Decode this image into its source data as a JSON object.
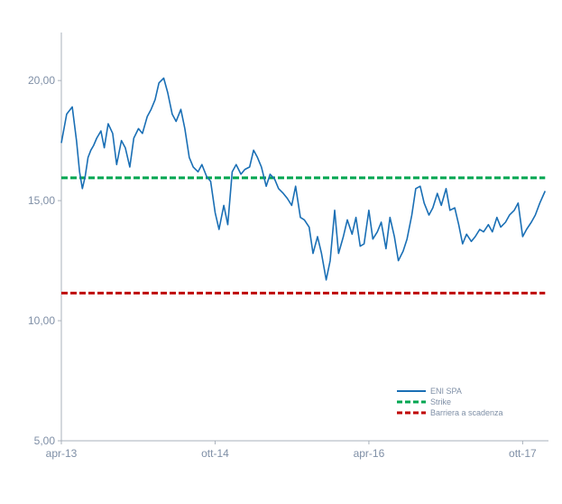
{
  "chart_data": {
    "type": "line",
    "title": "",
    "xlabel": "",
    "ylabel": "",
    "ylim": [
      5,
      22
    ],
    "yticks": [
      5,
      10,
      15,
      20
    ],
    "ytick_labels": [
      "5,00",
      "10,00",
      "15,00",
      "20,00"
    ],
    "xlim": [
      "2013-04-01",
      "2018-01-01"
    ],
    "xticks": [
      "2013-04-01",
      "2014-10-01",
      "2016-04-01",
      "2017-10-01"
    ],
    "xtick_labels": [
      "apr-13",
      "ott-14",
      "apr-16",
      "ott-17"
    ],
    "grid": false,
    "legend_position": "bottom-right",
    "series": [
      {
        "name": "ENI SPA",
        "color": "#1a6fb5",
        "style": "solid",
        "x": [
          "2013-04-01",
          "2013-04-20",
          "2013-05-10",
          "2013-05-25",
          "2013-06-05",
          "2013-06-15",
          "2013-06-25",
          "2013-07-05",
          "2013-07-15",
          "2013-07-25",
          "2013-08-05",
          "2013-08-20",
          "2013-09-01",
          "2013-09-15",
          "2013-10-01",
          "2013-10-15",
          "2013-11-01",
          "2013-11-15",
          "2013-12-01",
          "2013-12-15",
          "2014-01-01",
          "2014-01-15",
          "2014-02-01",
          "2014-02-15",
          "2014-03-01",
          "2014-03-15",
          "2014-04-01",
          "2014-04-15",
          "2014-05-01",
          "2014-05-15",
          "2014-06-01",
          "2014-06-15",
          "2014-07-01",
          "2014-07-15",
          "2014-08-01",
          "2014-08-15",
          "2014-09-01",
          "2014-09-15",
          "2014-10-01",
          "2014-10-15",
          "2014-11-01",
          "2014-11-15",
          "2014-12-01",
          "2014-12-15",
          "2015-01-01",
          "2015-01-15",
          "2015-02-01",
          "2015-02-15",
          "2015-03-01",
          "2015-03-15",
          "2015-04-01",
          "2015-04-15",
          "2015-05-01",
          "2015-05-15",
          "2015-06-01",
          "2015-06-15",
          "2015-07-01",
          "2015-07-15",
          "2015-08-01",
          "2015-08-15",
          "2015-09-01",
          "2015-09-15",
          "2015-10-01",
          "2015-10-15",
          "2015-11-01",
          "2015-11-15",
          "2015-12-01",
          "2015-12-15",
          "2016-01-01",
          "2016-01-15",
          "2016-02-01",
          "2016-02-15",
          "2016-03-01",
          "2016-03-15",
          "2016-04-01",
          "2016-04-15",
          "2016-05-01",
          "2016-05-15",
          "2016-06-01",
          "2016-06-15",
          "2016-07-01",
          "2016-07-15",
          "2016-08-01",
          "2016-08-15",
          "2016-09-01",
          "2016-09-15",
          "2016-10-01",
          "2016-10-15",
          "2016-11-01",
          "2016-11-15",
          "2016-12-01",
          "2016-12-15",
          "2017-01-01",
          "2017-01-15",
          "2017-02-01",
          "2017-02-15",
          "2017-03-01",
          "2017-03-15",
          "2017-04-01",
          "2017-04-15",
          "2017-05-01",
          "2017-05-15",
          "2017-06-01",
          "2017-06-15",
          "2017-07-01",
          "2017-07-15",
          "2017-08-01",
          "2017-08-15",
          "2017-09-01",
          "2017-09-15",
          "2017-10-01",
          "2017-10-15",
          "2017-11-01",
          "2017-11-15",
          "2017-12-01",
          "2017-12-20"
        ],
        "values": [
          17.4,
          18.6,
          18.9,
          17.5,
          16.2,
          15.5,
          16.0,
          16.8,
          17.1,
          17.3,
          17.6,
          17.9,
          17.2,
          18.2,
          17.8,
          16.5,
          17.5,
          17.2,
          16.4,
          17.6,
          18.0,
          17.8,
          18.5,
          18.8,
          19.2,
          19.9,
          20.1,
          19.5,
          18.6,
          18.3,
          18.8,
          18.0,
          16.8,
          16.4,
          16.2,
          16.5,
          16.0,
          15.8,
          14.5,
          13.8,
          14.8,
          14.0,
          16.2,
          16.5,
          16.1,
          16.3,
          16.4,
          17.1,
          16.8,
          16.4,
          15.6,
          16.1,
          15.9,
          15.5,
          15.3,
          15.1,
          14.8,
          15.6,
          14.3,
          14.2,
          13.9,
          12.8,
          13.5,
          12.8,
          11.7,
          12.5,
          14.6,
          12.8,
          13.5,
          14.2,
          13.6,
          14.3,
          13.1,
          13.2,
          14.6,
          13.4,
          13.7,
          14.1,
          13.0,
          14.3,
          13.5,
          12.5,
          12.9,
          13.4,
          14.4,
          15.5,
          15.6,
          14.9,
          14.4,
          14.7,
          15.3,
          14.8,
          15.5,
          14.6,
          14.7,
          14.0,
          13.2,
          13.6,
          13.3,
          13.5,
          13.8,
          13.7,
          14.0,
          13.7,
          14.3,
          13.9,
          14.1,
          14.4,
          14.6,
          14.9,
          13.5,
          13.8,
          14.1,
          14.4,
          14.9,
          15.4
        ]
      },
      {
        "name": "Strike",
        "color": "#00a651",
        "style": "dashed",
        "x": [
          "2013-04-01",
          "2017-12-20"
        ],
        "values": [
          15.95,
          15.95
        ]
      },
      {
        "name": "Barriera a scadenza",
        "color": "#c00000",
        "style": "dashed",
        "x": [
          "2013-04-01",
          "2017-12-20"
        ],
        "values": [
          11.15,
          11.15
        ]
      }
    ]
  }
}
